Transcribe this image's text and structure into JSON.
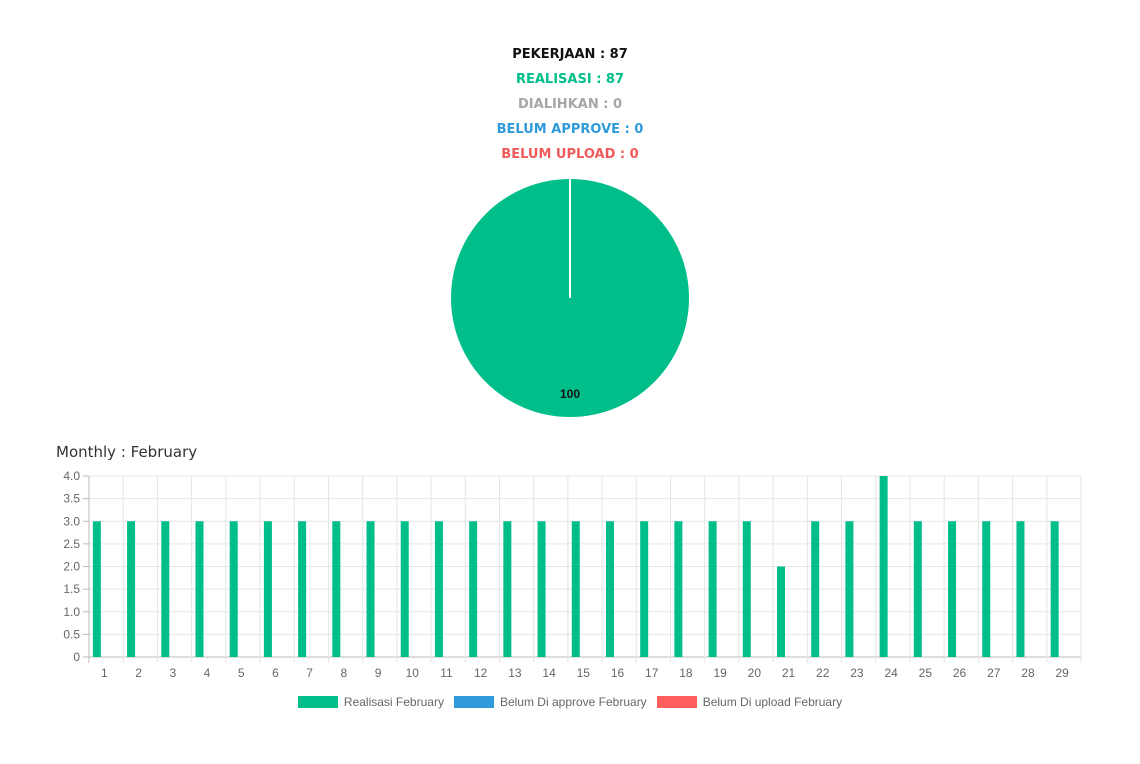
{
  "stats": [
    {
      "label": "PEKERJAAN : 87",
      "color": "#111111"
    },
    {
      "label": "REALISASI : 87",
      "color": "#00BE8A"
    },
    {
      "label": "DIALIHKAN : 0",
      "color": "#A6A6A6"
    },
    {
      "label": "BELUM APPROVE : 0",
      "color": "#2F9BDB"
    },
    {
      "label": "BELUM UPLOAD : 0",
      "color": "#F05A5A"
    }
  ],
  "chart_data": [
    {
      "type": "pie",
      "slices": [
        {
          "value": 100,
          "label": "100",
          "color": "#00BE8A"
        },
        {
          "value": 0,
          "color": "#A6A6A6"
        },
        {
          "value": 0,
          "color": "#2F9BDB"
        },
        {
          "value": 0,
          "color": "#F05A5A"
        }
      ]
    },
    {
      "type": "bar",
      "title": "Monthly : February",
      "categories": [
        "1",
        "2",
        "3",
        "4",
        "5",
        "6",
        "7",
        "8",
        "9",
        "10",
        "11",
        "12",
        "13",
        "14",
        "15",
        "16",
        "17",
        "18",
        "19",
        "20",
        "21",
        "22",
        "23",
        "24",
        "25",
        "26",
        "27",
        "28",
        "29"
      ],
      "series": [
        {
          "name": "Realisasi February",
          "color": "#00BE8A",
          "values": [
            3,
            3,
            3,
            3,
            3,
            3,
            3,
            3,
            3,
            3,
            3,
            3,
            3,
            3,
            3,
            3,
            3,
            3,
            3,
            3,
            2,
            3,
            3,
            4,
            3,
            3,
            3,
            3,
            3
          ]
        },
        {
          "name": "Belum Di approve February",
          "color": "#2F9BDB",
          "values": [
            0,
            0,
            0,
            0,
            0,
            0,
            0,
            0,
            0,
            0,
            0,
            0,
            0,
            0,
            0,
            0,
            0,
            0,
            0,
            0,
            0,
            0,
            0,
            0,
            0,
            0,
            0,
            0,
            0
          ]
        },
        {
          "name": "Belum Di upload February",
          "color": "#FF5E5E",
          "values": [
            0,
            0,
            0,
            0,
            0,
            0,
            0,
            0,
            0,
            0,
            0,
            0,
            0,
            0,
            0,
            0,
            0,
            0,
            0,
            0,
            0,
            0,
            0,
            0,
            0,
            0,
            0,
            0,
            0
          ]
        }
      ],
      "yticks": [
        "0",
        "0.5",
        "1.0",
        "1.5",
        "2.0",
        "2.5",
        "3.0",
        "3.5",
        "4.0"
      ],
      "ylim": [
        0,
        4
      ],
      "grid": true,
      "legend": "bottom"
    }
  ]
}
